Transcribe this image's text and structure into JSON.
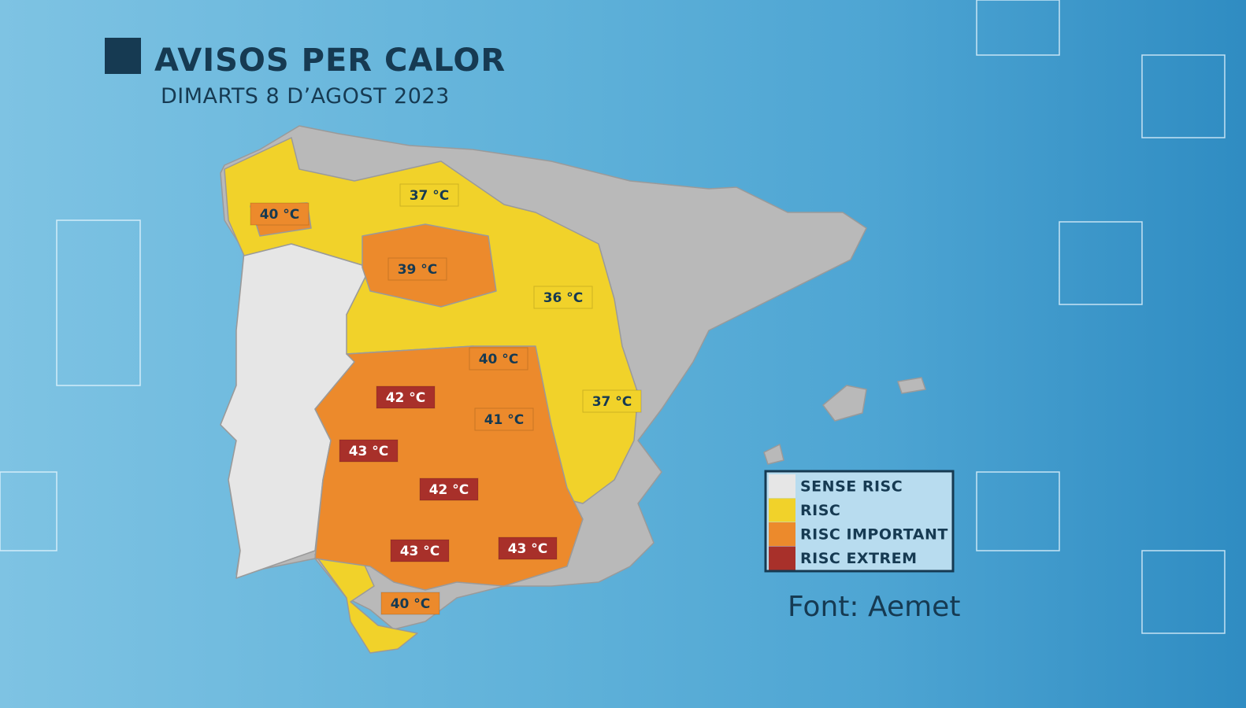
{
  "header": {
    "title": "AVISOS PER CALOR",
    "subtitle": "DIMARTS 8 D’AGOST 2023"
  },
  "legend": [
    {
      "name": "SENSE RISC",
      "color": "#e6e6e6"
    },
    {
      "name": "RISC",
      "color": "#f1d22a"
    },
    {
      "name": "RISC IMPORTANT",
      "color": "#ec8a2c"
    },
    {
      "name": "RISC EXTREM",
      "color": "#a8302a"
    }
  ],
  "labels": [
    {
      "text": "40 °C",
      "color": "#ec8a2c"
    },
    {
      "text": "37 °C",
      "color": "#f1d22a"
    },
    {
      "text": "39 °C",
      "color": "#ec8a2c"
    },
    {
      "text": "36 °C",
      "color": "#f1d22a"
    },
    {
      "text": "40 °C",
      "color": "#ec8a2c"
    },
    {
      "text": "37 °C",
      "color": "#f1d22a"
    },
    {
      "text": "42 °C",
      "color": "#a8302a"
    },
    {
      "text": "41 °C",
      "color": "#ec8a2c"
    },
    {
      "text": "43 °C",
      "color": "#a8302a"
    },
    {
      "text": "42 °C",
      "color": "#a8302a"
    },
    {
      "text": "43 °C",
      "color": "#a8302a"
    },
    {
      "text": "43 °C",
      "color": "#a8302a"
    },
    {
      "text": "40 °C",
      "color": "#ec8a2c"
    }
  ],
  "source": "Font: Aemet"
}
